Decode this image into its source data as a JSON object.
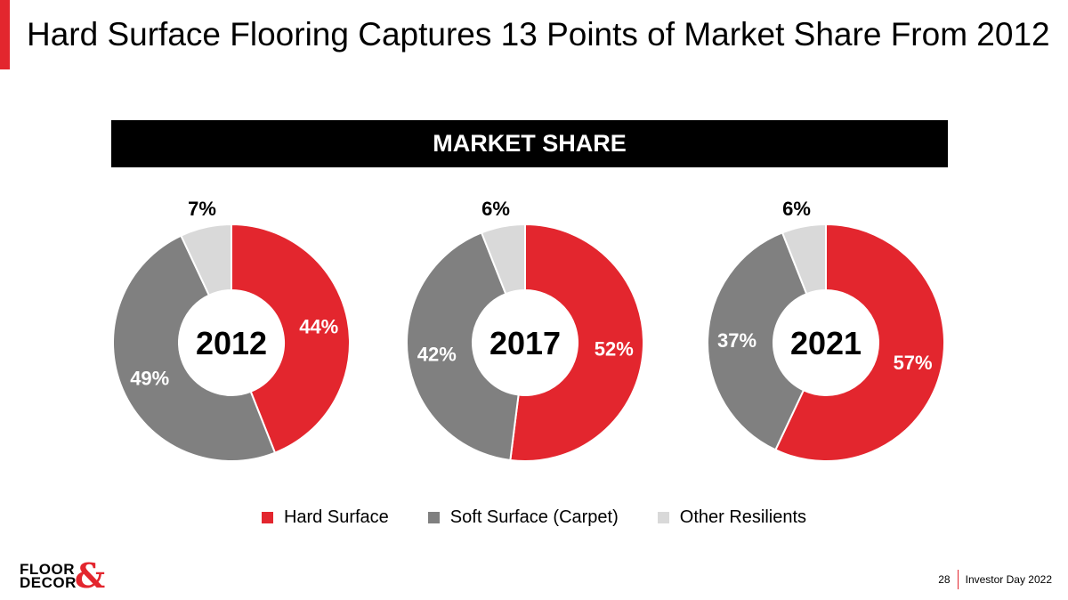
{
  "header": {
    "title": "Hard Surface Flooring Captures 13 Points of Market Share From 2012"
  },
  "banner": {
    "label": "MARKET SHARE"
  },
  "colors": {
    "hard_surface": "#e3262e",
    "soft_surface": "#808080",
    "other_resilients": "#d9d9d9",
    "accent": "#e3262e",
    "banner_bg": "#000000"
  },
  "chart_data": {
    "type": "pie",
    "title": "MARKET SHARE",
    "categories": [
      "Hard Surface",
      "Soft Surface (Carpet)",
      "Other Resilients"
    ],
    "charts": [
      {
        "year": "2012",
        "values": [
          44,
          49,
          7
        ],
        "labels": [
          "44%",
          "49%",
          "7%"
        ]
      },
      {
        "year": "2017",
        "values": [
          52,
          42,
          6
        ],
        "labels": [
          "52%",
          "42%",
          "6%"
        ]
      },
      {
        "year": "2021",
        "values": [
          57,
          37,
          6
        ],
        "labels": [
          "57%",
          "37%",
          "6%"
        ]
      }
    ],
    "legend": [
      {
        "label": "Hard Surface",
        "color": "#e3262e"
      },
      {
        "label": "Soft Surface (Carpet)",
        "color": "#808080"
      },
      {
        "label": "Other Resilients",
        "color": "#d9d9d9"
      }
    ],
    "legend_position": "bottom"
  },
  "logo": {
    "line1": "FLOOR",
    "line2": "DECOR",
    "amp": "&"
  },
  "footer": {
    "page_number": "28",
    "event": "Investor Day 2022"
  }
}
